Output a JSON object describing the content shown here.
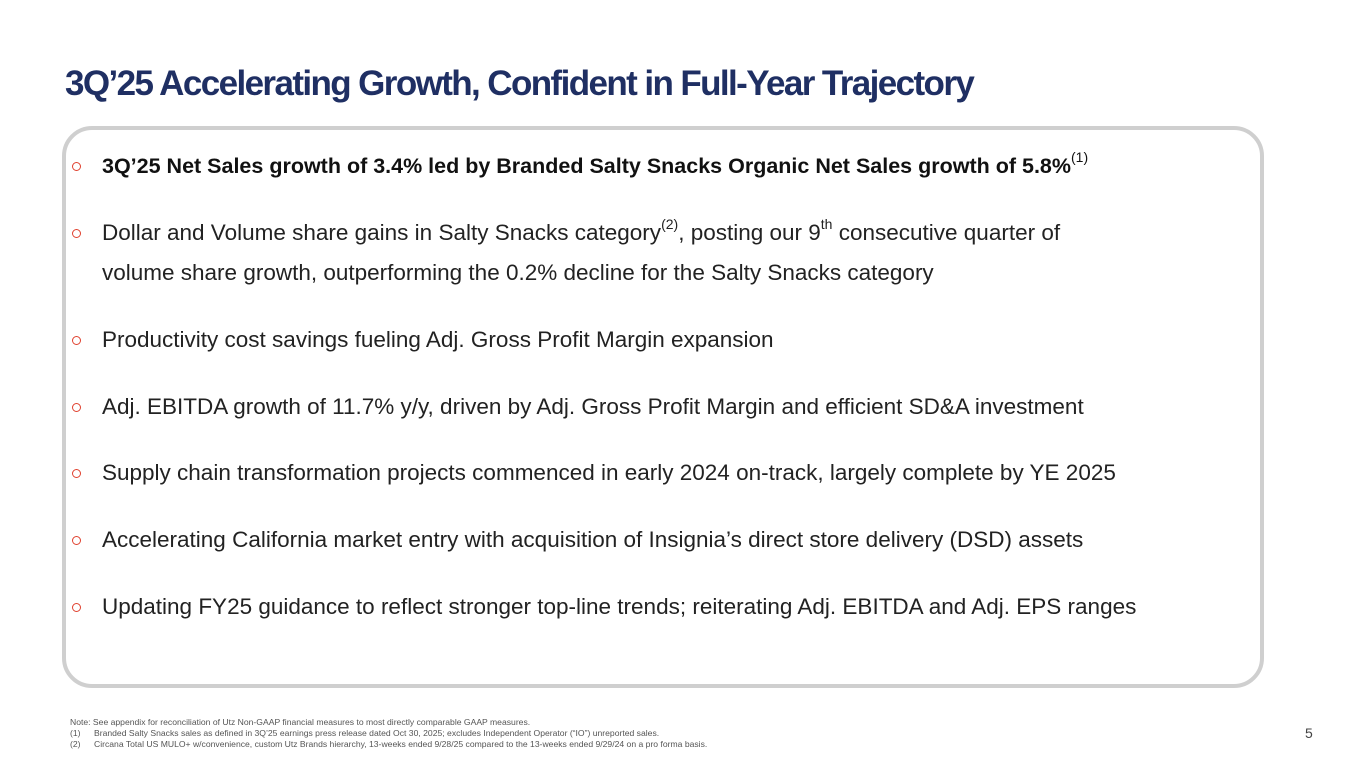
{
  "title": "3Q’25 Accelerating Growth, Confident in Full-Year Trajectory",
  "bullets": [
    {
      "text": "3Q’25 Net Sales growth of 3.4% led by Branded Salty Snacks Organic Net Sales growth of 5.8%",
      "sup": "(1)"
    },
    {
      "text_a": "Dollar and Volume share gains in Salty Snacks category",
      "sup_a": "(2)",
      "text_b": ", posting our 9",
      "sup_b": "th",
      "text_c": " consecutive quarter of",
      "text_d": "volume share growth, outperforming the 0.2% decline for the Salty Snacks category"
    },
    {
      "text": "Productivity cost savings fueling Adj. Gross Profit Margin expansion"
    },
    {
      "text": "Adj. EBITDA growth of 11.7% y/y, driven by Adj. Gross Profit Margin and efficient SD&A investment"
    },
    {
      "text": "Supply chain transformation projects commenced in early 2024 on-track, largely complete by YE 2025"
    },
    {
      "text": "Accelerating California market entry with acquisition of Insignia’s direct store delivery (DSD) assets"
    },
    {
      "text": "Updating FY25 guidance to reflect stronger top-line trends; reiterating Adj. EBITDA and Adj. EPS ranges"
    }
  ],
  "footnotes": {
    "note": "Note: See appendix for reconciliation of Utz Non-GAAP financial measures to most directly comparable GAAP measures.",
    "items": [
      {
        "num": "(1)",
        "text": "Branded Salty Snacks sales as defined in 3Q’25 earnings press release dated Oct 30, 2025; excludes Independent Operator (“IO”) unreported sales."
      },
      {
        "num": "(2)",
        "text": "Circana Total US MULO+ w/convenience, custom Utz Brands hierarchy, 13-weeks ended 9/28/25 compared to the 13-weeks ended 9/29/24 on a pro forma basis."
      }
    ]
  },
  "page_number": "5",
  "colors": {
    "title": "#1f2f63",
    "marker": "#e0412f",
    "card_border": "#cfcfcf"
  }
}
